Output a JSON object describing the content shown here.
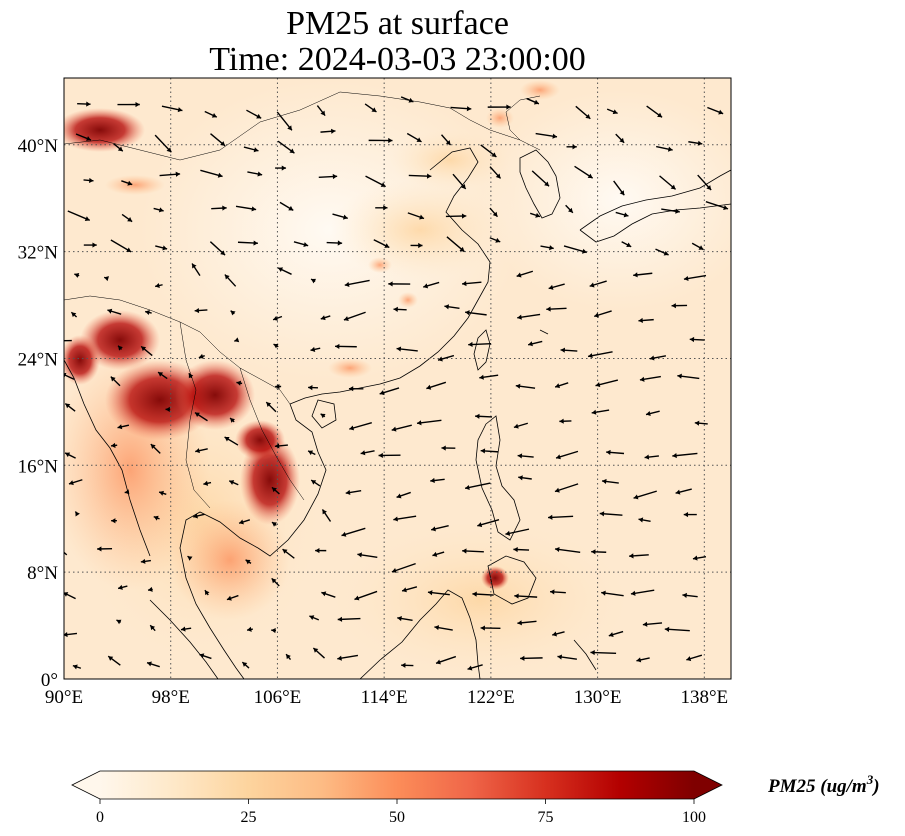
{
  "title_line1": "PM25 at surface",
  "title_line2": "Time: 2024-03-03 23:00:00",
  "map": {
    "extent": {
      "lon_min": 90,
      "lon_max": 140,
      "lat_min": 0,
      "lat_max": 45
    },
    "lon_ticks": [
      90,
      98,
      106,
      114,
      122,
      130,
      138
    ],
    "lon_tick_labels": [
      "90°E",
      "98°E",
      "106°E",
      "114°E",
      "122°E",
      "130°E",
      "138°E"
    ],
    "lat_ticks": [
      0,
      8,
      16,
      24,
      32,
      40
    ],
    "lat_tick_labels": [
      "0°",
      "8°N",
      "16°N",
      "24°N",
      "32°N",
      "40°N"
    ],
    "grid": true,
    "field": "PM25",
    "wind_vectors": true
  },
  "colorbar": {
    "label_main": "PM25 (ug/m",
    "label_sup": "3",
    "label_close": ")",
    "ticks": [
      0,
      25,
      50,
      75,
      100
    ],
    "tick_labels": [
      "0",
      "25",
      "50",
      "75",
      "100"
    ],
    "min": 0,
    "max": 100,
    "colormap": "OrRd",
    "extend": "both",
    "colors": [
      "#fff7ec",
      "#fee8c8",
      "#fdd49e",
      "#fdbb84",
      "#fc8d59",
      "#ef6548",
      "#d7301f",
      "#b30000",
      "#7f0000"
    ]
  }
}
